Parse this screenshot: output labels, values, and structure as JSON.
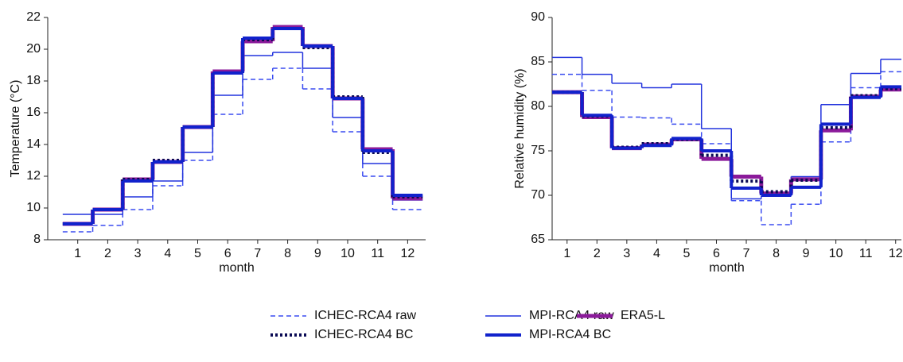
{
  "chart_data": [
    {
      "type": "step",
      "y_label": "Temperature (°C)",
      "x_label": "month",
      "x": [
        1,
        2,
        3,
        4,
        5,
        6,
        7,
        8,
        9,
        10,
        11,
        12
      ],
      "xlim": [
        0,
        12.6
      ],
      "xticks": [
        1,
        2,
        3,
        4,
        5,
        6,
        7,
        8,
        9,
        10,
        11,
        12
      ],
      "ylim": [
        8,
        22
      ],
      "yticks": [
        8,
        10,
        12,
        14,
        16,
        18,
        20,
        22
      ],
      "grid": false,
      "series": [
        {
          "name": "ICHEC-RCA4 raw",
          "color": "#3a4cf0",
          "width": 1.5,
          "dash": "6,4",
          "values": [
            8.5,
            8.9,
            9.9,
            11.4,
            13.0,
            15.9,
            18.1,
            18.8,
            17.5,
            14.8,
            12.0,
            9.9
          ]
        },
        {
          "name": "MPI-RCA4 raw",
          "color": "#2233dd",
          "width": 1.5,
          "dash": "none",
          "values": [
            9.6,
            9.6,
            10.7,
            11.7,
            13.5,
            17.1,
            19.6,
            19.8,
            18.8,
            15.7,
            12.8,
            10.5
          ]
        },
        {
          "name": "ERA5-L",
          "color": "#8b1a9a",
          "width": 5,
          "dash": "none",
          "values": [
            9.0,
            9.9,
            11.8,
            12.9,
            15.1,
            18.6,
            20.5,
            21.4,
            20.2,
            16.9,
            13.7,
            10.6
          ]
        },
        {
          "name": "ICHEC-RCA4 BC",
          "color": "#0b0b55",
          "width": 4,
          "dash": "3,3",
          "values": [
            9.0,
            9.9,
            11.8,
            13.0,
            15.1,
            18.5,
            20.6,
            21.3,
            20.1,
            17.0,
            13.5,
            10.7
          ]
        },
        {
          "name": "MPI-RCA4 BC",
          "color": "#1122cc",
          "width": 4,
          "dash": "none",
          "values": [
            9.0,
            9.9,
            11.7,
            12.9,
            15.1,
            18.5,
            20.7,
            21.3,
            20.2,
            16.9,
            13.6,
            10.8
          ]
        }
      ]
    },
    {
      "type": "step",
      "y_label": "Relative humidity (%)",
      "x_label": "month",
      "x": [
        1,
        2,
        3,
        4,
        5,
        6,
        7,
        8,
        9,
        10,
        11,
        12
      ],
      "xlim": [
        0.5,
        12.3
      ],
      "xticks": [
        1,
        2,
        3,
        4,
        5,
        6,
        7,
        8,
        9,
        10,
        11,
        12
      ],
      "ylim": [
        65,
        90
      ],
      "yticks": [
        65,
        70,
        75,
        80,
        85,
        90
      ],
      "grid": false,
      "series": [
        {
          "color": "#3a4cf0",
          "width": 1.5,
          "dash": "6,4",
          "values": [
            83.6,
            81.8,
            78.8,
            78.7,
            78.0,
            75.8,
            69.4,
            66.7,
            69.0,
            76.0,
            82.1,
            83.9
          ]
        },
        {
          "color": "#2233dd",
          "width": 1.5,
          "dash": "none",
          "values": [
            85.5,
            83.6,
            82.6,
            82.1,
            82.5,
            77.5,
            69.6,
            69.9,
            72.1,
            80.2,
            83.7,
            85.3
          ]
        },
        {
          "color": "#8b1a9a",
          "width": 5,
          "dash": "none",
          "values": [
            81.6,
            78.8,
            75.3,
            75.7,
            76.3,
            74.1,
            72.1,
            70.2,
            71.8,
            77.3,
            81.1,
            81.9
          ]
        },
        {
          "color": "#0b0b55",
          "width": 4,
          "dash": "3,3",
          "values": [
            81.6,
            78.9,
            75.4,
            75.8,
            76.3,
            74.5,
            71.6,
            70.4,
            71.7,
            77.6,
            81.2,
            82.0
          ]
        },
        {
          "color": "#1122cc",
          "width": 4,
          "dash": "none",
          "values": [
            81.6,
            79.0,
            75.3,
            75.6,
            76.4,
            75.0,
            70.8,
            70.0,
            70.9,
            78.0,
            81.0,
            82.2
          ]
        }
      ]
    }
  ]
}
